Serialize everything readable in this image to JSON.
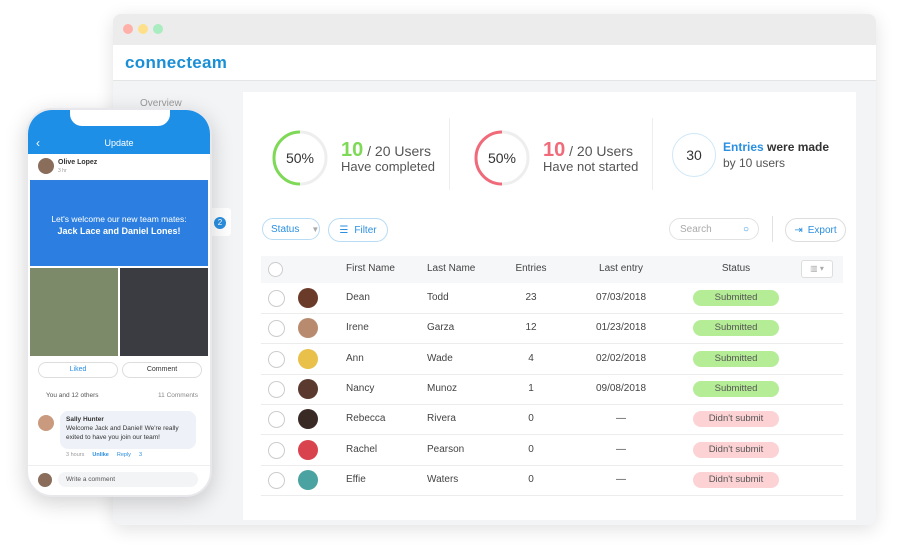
{
  "app": {
    "logo": "connecteam",
    "nav": [
      "Overview"
    ]
  },
  "stats": [
    {
      "percent": "50%",
      "count": "10",
      "total": "/ 20 Users",
      "label": "Have completed"
    },
    {
      "percent": "50%",
      "count": "10",
      "total": "/ 20 Users",
      "label": "Have not started"
    },
    {
      "count": "30",
      "highlight": "Entries",
      "rest": "were made",
      "label": "by 10 users"
    }
  ],
  "toolbar": {
    "status": "Status",
    "filter": "Filter",
    "search": "Search",
    "export": "Export"
  },
  "table": {
    "columns": [
      "First Name",
      "Last Name",
      "Entries",
      "Last entry",
      "Status"
    ],
    "rows": [
      {
        "first": "Dean",
        "last": "Todd",
        "entries": 23,
        "last_entry": "07/03/2018",
        "status": "Submitted",
        "status_color": "#b5ec96"
      },
      {
        "first": "Irene",
        "last": "Garza",
        "entries": 12,
        "last_entry": "01/23/2018",
        "status": "Submitted",
        "status_color": "#b5ec96"
      },
      {
        "first": "Ann",
        "last": "Wade",
        "entries": 4,
        "last_entry": "02/02/2018",
        "status": "Submitted",
        "status_color": "#b5ec96"
      },
      {
        "first": "Nancy",
        "last": "Munoz",
        "entries": 1,
        "last_entry": "09/08/2018",
        "status": "Submitted",
        "status_color": "#b5ec96"
      },
      {
        "first": "Rebecca",
        "last": "Rivera",
        "entries": 0,
        "last_entry": "—",
        "status": "Didn't submit",
        "status_color": "#fcd2d4"
      },
      {
        "first": "Rachel",
        "last": "Pearson",
        "entries": 0,
        "last_entry": "—",
        "status": "Didn't submit",
        "status_color": "#fcd2d4"
      },
      {
        "first": "Effie",
        "last": "Waters",
        "entries": 0,
        "last_entry": "—",
        "status": "Didn't submit",
        "status_color": "#fcd2d4"
      }
    ]
  },
  "phone": {
    "header": "Update",
    "author": "Olive Lopez",
    "time": "3 hr",
    "banner": [
      "Let's welcome our new team mates:",
      "Jack Lace and Daniel Lones!"
    ],
    "liked": "Liked",
    "comment": "Comment",
    "likes": "You and 12 others",
    "comments": "11 Comments",
    "reply": {
      "name": "Sally Hunter",
      "text": "Welcome Jack and Daniel! We're really exited to have you join our team!",
      "time": "3 hours",
      "unlike": "Unlike",
      "reply": "Reply",
      "likes": "3"
    },
    "input": "Write a comment"
  },
  "badge": "2"
}
